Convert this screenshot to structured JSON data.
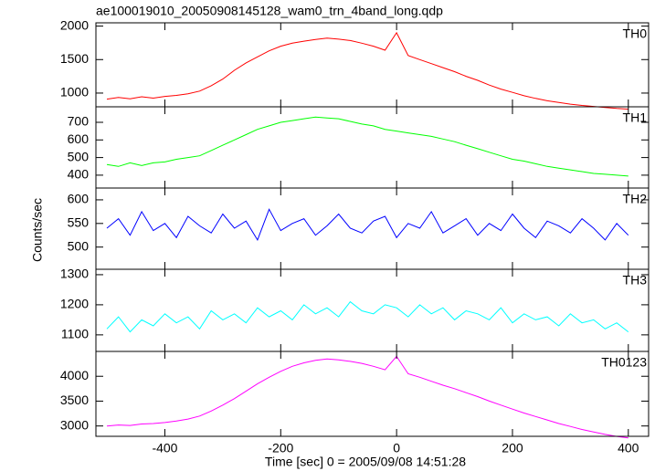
{
  "chart_data": [
    {
      "type": "line",
      "title": "ae100019010_20050908145128_wam0_trn_4band_long.qdp",
      "x": [
        -500,
        -480,
        -460,
        -440,
        -420,
        -400,
        -380,
        -360,
        -340,
        -320,
        -300,
        -280,
        -260,
        -240,
        -220,
        -200,
        -180,
        -160,
        -140,
        -120,
        -100,
        -80,
        -60,
        -40,
        -20,
        0,
        20,
        40,
        60,
        80,
        100,
        120,
        140,
        160,
        180,
        200,
        220,
        240,
        260,
        280,
        300,
        320,
        340,
        360,
        380,
        400
      ],
      "xlim": [
        -519,
        435
      ],
      "ylim": [
        795,
        2049
      ],
      "yticks": [
        1000,
        1500,
        2000
      ],
      "series": [
        {
          "name": "TH0",
          "color": "#ff0000",
          "values": [
            910,
            935,
            915,
            945,
            925,
            950,
            965,
            990,
            1030,
            1110,
            1210,
            1340,
            1450,
            1540,
            1630,
            1700,
            1745,
            1775,
            1800,
            1820,
            1805,
            1785,
            1745,
            1700,
            1640,
            1900,
            1560,
            1500,
            1440,
            1380,
            1320,
            1250,
            1190,
            1120,
            1060,
            1010,
            960,
            920,
            885,
            860,
            835,
            815,
            800,
            785,
            770,
            760
          ]
        }
      ]
    },
    {
      "type": "line",
      "x": [
        -500,
        -480,
        -460,
        -440,
        -420,
        -400,
        -380,
        -360,
        -340,
        -320,
        -300,
        -280,
        -260,
        -240,
        -220,
        -200,
        -180,
        -160,
        -140,
        -120,
        -100,
        -80,
        -60,
        -40,
        -20,
        0,
        20,
        40,
        60,
        80,
        100,
        120,
        140,
        160,
        180,
        200,
        220,
        240,
        260,
        280,
        300,
        320,
        340,
        360,
        380,
        400
      ],
      "xlim": [
        -519,
        435
      ],
      "ylim": [
        327,
        788
      ],
      "yticks": [
        400,
        500,
        600,
        700
      ],
      "series": [
        {
          "name": "TH1",
          "color": "#00ff00",
          "values": [
            460,
            450,
            470,
            455,
            470,
            475,
            490,
            500,
            510,
            540,
            570,
            600,
            630,
            660,
            680,
            700,
            710,
            720,
            730,
            725,
            720,
            705,
            690,
            680,
            660,
            650,
            640,
            630,
            620,
            605,
            590,
            570,
            550,
            530,
            510,
            490,
            480,
            465,
            450,
            440,
            430,
            420,
            410,
            405,
            400,
            395
          ]
        }
      ]
    },
    {
      "type": "line",
      "ylabel": "Counts/sec",
      "x": [
        -500,
        -480,
        -460,
        -440,
        -420,
        -400,
        -380,
        -360,
        -340,
        -320,
        -300,
        -280,
        -260,
        -240,
        -220,
        -200,
        -180,
        -160,
        -140,
        -120,
        -100,
        -80,
        -60,
        -40,
        -20,
        0,
        20,
        40,
        60,
        80,
        100,
        120,
        140,
        160,
        180,
        200,
        220,
        240,
        260,
        280,
        300,
        320,
        340,
        360,
        380,
        400
      ],
      "xlim": [
        -519,
        435
      ],
      "ylim": [
        453,
        625
      ],
      "yticks": [
        500,
        550,
        600
      ],
      "series": [
        {
          "name": "TH2",
          "color": "#0000ff",
          "values": [
            540,
            560,
            525,
            575,
            535,
            550,
            520,
            565,
            545,
            530,
            570,
            540,
            555,
            515,
            580,
            535,
            550,
            560,
            525,
            545,
            570,
            540,
            530,
            555,
            565,
            520,
            550,
            540,
            575,
            530,
            545,
            560,
            525,
            550,
            535,
            570,
            540,
            520,
            555,
            545,
            530,
            560,
            540,
            515,
            550,
            525
          ]
        }
      ]
    },
    {
      "type": "line",
      "x": [
        -500,
        -480,
        -460,
        -440,
        -420,
        -400,
        -380,
        -360,
        -340,
        -320,
        -300,
        -280,
        -260,
        -240,
        -220,
        -200,
        -180,
        -160,
        -140,
        -120,
        -100,
        -80,
        -60,
        -40,
        -20,
        0,
        20,
        40,
        60,
        80,
        100,
        120,
        140,
        160,
        180,
        200,
        220,
        240,
        260,
        280,
        300,
        320,
        340,
        360,
        380,
        400
      ],
      "xlim": [
        -519,
        435
      ],
      "ylim": [
        1045,
        1318
      ],
      "yticks": [
        1100,
        1200,
        1300
      ],
      "series": [
        {
          "name": "TH3",
          "color": "#00ffff",
          "values": [
            1120,
            1160,
            1110,
            1150,
            1130,
            1170,
            1140,
            1160,
            1120,
            1180,
            1150,
            1170,
            1140,
            1190,
            1160,
            1180,
            1150,
            1200,
            1170,
            1190,
            1160,
            1210,
            1180,
            1170,
            1200,
            1190,
            1160,
            1200,
            1170,
            1190,
            1150,
            1180,
            1170,
            1150,
            1190,
            1140,
            1170,
            1150,
            1160,
            1130,
            1170,
            1140,
            1150,
            1120,
            1140,
            1110
          ]
        }
      ]
    },
    {
      "type": "line",
      "xlabel": "Time [sec] 0 = 2005/09/08 14:51:28",
      "x": [
        -500,
        -480,
        -460,
        -440,
        -420,
        -400,
        -380,
        -360,
        -340,
        -320,
        -300,
        -280,
        -260,
        -240,
        -220,
        -200,
        -180,
        -160,
        -140,
        -120,
        -100,
        -80,
        -60,
        -40,
        -20,
        0,
        20,
        40,
        60,
        80,
        100,
        120,
        140,
        160,
        180,
        200,
        220,
        240,
        260,
        280,
        300,
        320,
        340,
        360,
        380,
        400
      ],
      "xlim": [
        -519,
        435
      ],
      "xticks": [
        -400,
        -200,
        0,
        200,
        400
      ],
      "ylim": [
        2792,
        4500
      ],
      "yticks": [
        3000,
        3500,
        4000
      ],
      "series": [
        {
          "name": "TH0123",
          "color": "#ff00ff",
          "values": [
            3000,
            3020,
            3010,
            3040,
            3050,
            3070,
            3100,
            3140,
            3200,
            3300,
            3420,
            3550,
            3700,
            3850,
            3980,
            4100,
            4200,
            4270,
            4320,
            4350,
            4330,
            4300,
            4260,
            4200,
            4130,
            4400,
            4050,
            3980,
            3900,
            3820,
            3750,
            3670,
            3590,
            3500,
            3420,
            3340,
            3260,
            3190,
            3120,
            3050,
            2990,
            2930,
            2880,
            2830,
            2790,
            2760
          ]
        }
      ]
    }
  ]
}
